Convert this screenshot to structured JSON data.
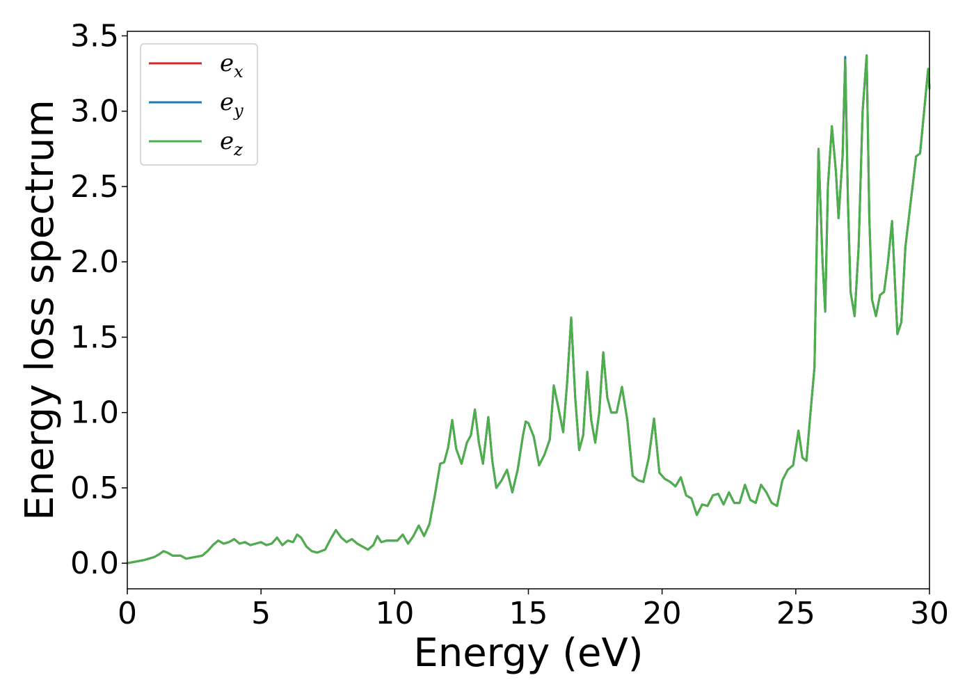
{
  "chart_data": {
    "type": "line",
    "title": "",
    "xlabel": "Energy (eV)",
    "ylabel": "Energy loss spectrum",
    "xlim": [
      0,
      30
    ],
    "ylim": [
      -0.17,
      3.53
    ],
    "xticks": [
      0,
      5,
      10,
      15,
      20,
      25,
      30
    ],
    "xtick_labels": [
      "0",
      "5",
      "10",
      "15",
      "20",
      "25",
      "30"
    ],
    "yticks": [
      0.0,
      0.5,
      1.0,
      1.5,
      2.0,
      2.5,
      3.0,
      3.5
    ],
    "ytick_labels": [
      "0.0",
      "0.5",
      "1.0",
      "1.5",
      "2.0",
      "2.5",
      "3.0",
      "3.5"
    ],
    "grid": false,
    "legend_position": "upper-left",
    "legend": [
      {
        "base": "e",
        "sub": "x",
        "color": "#d62728"
      },
      {
        "base": "e",
        "sub": "y",
        "color": "#1f77b4"
      },
      {
        "base": "e",
        "sub": "z",
        "color": "#4daf4a"
      }
    ],
    "x": [
      0.0,
      0.3,
      0.6,
      1.0,
      1.2,
      1.35,
      1.5,
      1.7,
      2.0,
      2.2,
      2.5,
      2.8,
      3.0,
      3.2,
      3.4,
      3.6,
      3.8,
      4.0,
      4.2,
      4.4,
      4.6,
      4.8,
      5.0,
      5.2,
      5.4,
      5.6,
      5.8,
      6.0,
      6.2,
      6.35,
      6.5,
      6.7,
      6.9,
      7.1,
      7.4,
      7.6,
      7.8,
      8.0,
      8.2,
      8.4,
      8.6,
      8.8,
      9.0,
      9.2,
      9.35,
      9.5,
      9.7,
      9.9,
      10.1,
      10.3,
      10.5,
      10.7,
      10.9,
      11.1,
      11.3,
      11.5,
      11.7,
      11.85,
      12.0,
      12.15,
      12.3,
      12.5,
      12.7,
      12.85,
      13.0,
      13.15,
      13.3,
      13.5,
      13.65,
      13.8,
      14.0,
      14.2,
      14.4,
      14.6,
      14.8,
      14.9,
      15.0,
      15.2,
      15.4,
      15.6,
      15.8,
      15.95,
      16.1,
      16.3,
      16.45,
      16.6,
      16.75,
      16.9,
      17.05,
      17.2,
      17.35,
      17.5,
      17.65,
      17.8,
      17.95,
      18.1,
      18.3,
      18.5,
      18.7,
      18.9,
      19.1,
      19.3,
      19.5,
      19.7,
      19.9,
      20.1,
      20.3,
      20.5,
      20.7,
      20.9,
      21.1,
      21.3,
      21.5,
      21.7,
      21.9,
      22.1,
      22.3,
      22.5,
      22.7,
      22.9,
      23.1,
      23.3,
      23.5,
      23.7,
      23.9,
      24.1,
      24.3,
      24.5,
      24.7,
      24.9,
      25.1,
      25.25,
      25.4,
      25.55,
      25.7,
      25.85,
      26.0,
      26.1,
      26.2,
      26.35,
      26.5,
      26.6,
      26.75,
      26.85,
      26.95,
      27.05,
      27.2,
      27.35,
      27.5,
      27.65,
      27.75,
      27.85,
      28.0,
      28.15,
      28.3,
      28.45,
      28.6,
      28.7,
      28.8,
      28.95,
      29.1,
      29.3,
      29.5,
      29.65,
      29.8,
      29.95,
      30.0
    ],
    "series": [
      {
        "name": "e_x",
        "color": "#d62728",
        "values": [
          0.0,
          0.01,
          0.02,
          0.04,
          0.06,
          0.08,
          0.07,
          0.05,
          0.05,
          0.03,
          0.04,
          0.05,
          0.08,
          0.12,
          0.15,
          0.13,
          0.14,
          0.16,
          0.13,
          0.14,
          0.12,
          0.13,
          0.14,
          0.12,
          0.13,
          0.17,
          0.12,
          0.15,
          0.14,
          0.19,
          0.17,
          0.11,
          0.08,
          0.07,
          0.09,
          0.16,
          0.22,
          0.17,
          0.14,
          0.16,
          0.13,
          0.11,
          0.09,
          0.12,
          0.18,
          0.14,
          0.15,
          0.15,
          0.15,
          0.19,
          0.13,
          0.18,
          0.25,
          0.18,
          0.26,
          0.45,
          0.66,
          0.67,
          0.77,
          0.95,
          0.76,
          0.66,
          0.8,
          0.85,
          1.02,
          0.8,
          0.66,
          0.97,
          0.68,
          0.5,
          0.55,
          0.62,
          0.47,
          0.62,
          0.85,
          0.94,
          0.93,
          0.84,
          0.65,
          0.72,
          0.82,
          1.18,
          1.05,
          0.87,
          1.2,
          1.63,
          1.1,
          0.75,
          0.85,
          1.27,
          0.95,
          0.8,
          1.0,
          1.4,
          1.1,
          1.0,
          1.0,
          1.17,
          0.95,
          0.58,
          0.55,
          0.54,
          0.7,
          0.96,
          0.6,
          0.56,
          0.54,
          0.51,
          0.57,
          0.45,
          0.43,
          0.32,
          0.39,
          0.38,
          0.45,
          0.46,
          0.39,
          0.47,
          0.4,
          0.4,
          0.52,
          0.42,
          0.4,
          0.52,
          0.47,
          0.4,
          0.38,
          0.55,
          0.62,
          0.65,
          0.88,
          0.7,
          0.68,
          1.0,
          1.3,
          2.75,
          2.0,
          1.67,
          2.5,
          2.9,
          2.6,
          2.29,
          2.7,
          3.35,
          2.4,
          1.8,
          1.64,
          2.1,
          3.0,
          3.37,
          2.3,
          1.75,
          1.64,
          1.78,
          1.8,
          2.0,
          2.27,
          1.9,
          1.52,
          1.6,
          2.1,
          2.4,
          2.7,
          2.72,
          3.0,
          3.28,
          3.15
        ]
      },
      {
        "name": "e_y",
        "color": "#1f77b4",
        "values": [
          0.0,
          0.01,
          0.02,
          0.04,
          0.06,
          0.08,
          0.07,
          0.05,
          0.05,
          0.03,
          0.04,
          0.05,
          0.08,
          0.12,
          0.15,
          0.13,
          0.14,
          0.16,
          0.13,
          0.14,
          0.12,
          0.13,
          0.14,
          0.12,
          0.13,
          0.17,
          0.12,
          0.15,
          0.14,
          0.19,
          0.17,
          0.11,
          0.08,
          0.07,
          0.09,
          0.16,
          0.22,
          0.17,
          0.14,
          0.16,
          0.13,
          0.11,
          0.09,
          0.12,
          0.18,
          0.14,
          0.15,
          0.15,
          0.15,
          0.19,
          0.13,
          0.18,
          0.25,
          0.18,
          0.26,
          0.45,
          0.66,
          0.67,
          0.77,
          0.95,
          0.76,
          0.66,
          0.8,
          0.85,
          1.02,
          0.8,
          0.66,
          0.97,
          0.68,
          0.5,
          0.55,
          0.62,
          0.47,
          0.62,
          0.85,
          0.94,
          0.93,
          0.84,
          0.65,
          0.72,
          0.82,
          1.18,
          1.05,
          0.87,
          1.2,
          1.63,
          1.1,
          0.75,
          0.85,
          1.27,
          0.95,
          0.8,
          1.0,
          1.4,
          1.1,
          1.0,
          1.0,
          1.17,
          0.95,
          0.58,
          0.55,
          0.54,
          0.7,
          0.96,
          0.6,
          0.56,
          0.54,
          0.51,
          0.57,
          0.45,
          0.43,
          0.32,
          0.39,
          0.38,
          0.45,
          0.46,
          0.39,
          0.47,
          0.4,
          0.4,
          0.52,
          0.42,
          0.4,
          0.52,
          0.47,
          0.4,
          0.38,
          0.55,
          0.62,
          0.65,
          0.88,
          0.7,
          0.68,
          1.0,
          1.3,
          2.75,
          2.0,
          1.67,
          2.5,
          2.9,
          2.6,
          2.29,
          2.7,
          3.36,
          2.4,
          1.8,
          1.64,
          2.1,
          3.0,
          3.37,
          2.3,
          1.75,
          1.64,
          1.78,
          1.8,
          2.0,
          2.27,
          1.9,
          1.52,
          1.6,
          2.1,
          2.4,
          2.7,
          2.72,
          3.0,
          3.28,
          3.15
        ]
      },
      {
        "name": "e_z",
        "color": "#4daf4a",
        "values": [
          0.0,
          0.01,
          0.02,
          0.04,
          0.06,
          0.08,
          0.07,
          0.05,
          0.05,
          0.03,
          0.04,
          0.05,
          0.08,
          0.12,
          0.15,
          0.13,
          0.14,
          0.16,
          0.13,
          0.14,
          0.12,
          0.13,
          0.14,
          0.12,
          0.13,
          0.17,
          0.12,
          0.15,
          0.14,
          0.19,
          0.17,
          0.11,
          0.08,
          0.07,
          0.09,
          0.16,
          0.22,
          0.17,
          0.14,
          0.16,
          0.13,
          0.11,
          0.09,
          0.12,
          0.18,
          0.14,
          0.15,
          0.15,
          0.15,
          0.19,
          0.13,
          0.18,
          0.25,
          0.18,
          0.26,
          0.45,
          0.66,
          0.67,
          0.77,
          0.95,
          0.76,
          0.66,
          0.8,
          0.85,
          1.02,
          0.8,
          0.66,
          0.97,
          0.68,
          0.5,
          0.55,
          0.62,
          0.47,
          0.62,
          0.85,
          0.94,
          0.93,
          0.84,
          0.65,
          0.72,
          0.82,
          1.18,
          1.05,
          0.87,
          1.2,
          1.63,
          1.1,
          0.75,
          0.85,
          1.27,
          0.95,
          0.8,
          1.0,
          1.4,
          1.1,
          1.0,
          1.0,
          1.17,
          0.95,
          0.58,
          0.55,
          0.54,
          0.7,
          0.96,
          0.6,
          0.56,
          0.54,
          0.51,
          0.57,
          0.45,
          0.43,
          0.32,
          0.39,
          0.38,
          0.45,
          0.46,
          0.39,
          0.47,
          0.4,
          0.4,
          0.52,
          0.42,
          0.4,
          0.52,
          0.47,
          0.4,
          0.38,
          0.55,
          0.62,
          0.65,
          0.88,
          0.7,
          0.68,
          1.0,
          1.3,
          2.75,
          2.0,
          1.67,
          2.5,
          2.9,
          2.6,
          2.29,
          2.7,
          3.34,
          2.4,
          1.8,
          1.64,
          2.1,
          3.0,
          3.37,
          2.3,
          1.75,
          1.64,
          1.78,
          1.8,
          2.0,
          2.27,
          1.9,
          1.52,
          1.6,
          2.1,
          2.4,
          2.7,
          2.72,
          3.0,
          3.28,
          3.15
        ]
      }
    ]
  }
}
